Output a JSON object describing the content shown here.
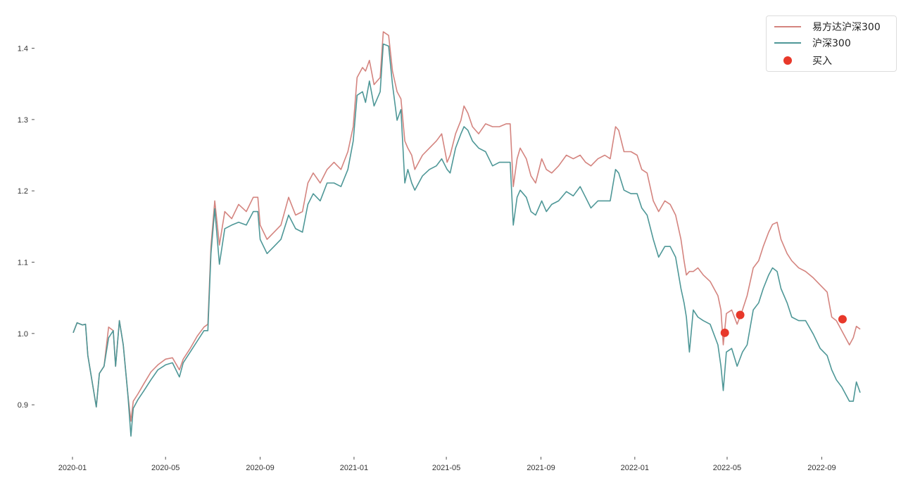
{
  "chart_data": {
    "type": "line",
    "title": "",
    "xlabel": "",
    "ylabel": "",
    "xlim": [
      "2019-12-11",
      "2022-11-11"
    ],
    "ylim": [
      0.836,
      1.44
    ],
    "grid": false,
    "legend_placement": "top-right",
    "x_ticks": [
      "2020-01",
      "2020-05",
      "2020-09",
      "2021-01",
      "2021-05",
      "2021-09",
      "2022-01",
      "2022-05",
      "2022-09"
    ],
    "y_ticks": [
      "0.9",
      "1.0",
      "1.1",
      "1.2",
      "1.3",
      "1.4"
    ],
    "x": [
      "2020-01-02",
      "2020-01-07",
      "2020-01-14",
      "2020-01-18",
      "2020-01-21",
      "2020-02-01",
      "2020-02-05",
      "2020-02-11",
      "2020-02-17",
      "2020-02-23",
      "2020-02-26",
      "2020-03-02",
      "2020-03-07",
      "2020-03-13",
      "2020-03-17",
      "2020-03-20",
      "2020-03-26",
      "2020-04-03",
      "2020-04-12",
      "2020-04-21",
      "2020-05-01",
      "2020-05-10",
      "2020-05-19",
      "2020-05-24",
      "2020-06-02",
      "2020-06-11",
      "2020-06-20",
      "2020-06-25",
      "2020-06-29",
      "2020-07-04",
      "2020-07-10",
      "2020-07-17",
      "2020-07-26",
      "2020-08-04",
      "2020-08-14",
      "2020-08-23",
      "2020-08-29",
      "2020-09-01",
      "2020-09-10",
      "2020-09-19",
      "2020-09-28",
      "2020-10-08",
      "2020-10-17",
      "2020-10-26",
      "2020-11-02",
      "2020-11-09",
      "2020-11-18",
      "2020-11-27",
      "2020-12-06",
      "2020-12-15",
      "2020-12-24",
      "2020-12-31",
      "2021-01-05",
      "2021-01-12",
      "2021-01-16",
      "2021-01-21",
      "2021-01-27",
      "2021-02-04",
      "2021-02-08",
      "2021-02-15",
      "2021-02-20",
      "2021-02-26",
      "2021-03-03",
      "2021-03-08",
      "2021-03-12",
      "2021-03-17",
      "2021-03-21",
      "2021-03-31",
      "2021-04-09",
      "2021-04-18",
      "2021-04-25",
      "2021-05-02",
      "2021-05-06",
      "2021-05-13",
      "2021-05-20",
      "2021-05-24",
      "2021-05-29",
      "2021-06-04",
      "2021-06-12",
      "2021-06-21",
      "2021-06-30",
      "2021-07-09",
      "2021-07-18",
      "2021-07-23",
      "2021-07-27",
      "2021-08-01",
      "2021-08-05",
      "2021-08-13",
      "2021-08-19",
      "2021-08-25",
      "2021-09-02",
      "2021-09-08",
      "2021-09-15",
      "2021-09-24",
      "2021-10-04",
      "2021-10-13",
      "2021-10-22",
      "2021-10-29",
      "2021-11-05",
      "2021-11-14",
      "2021-11-23",
      "2021-11-30",
      "2021-12-07",
      "2021-12-11",
      "2021-12-18",
      "2021-12-27",
      "2022-01-04",
      "2022-01-10",
      "2022-01-17",
      "2022-01-25",
      "2022-02-01",
      "2022-02-09",
      "2022-02-16",
      "2022-02-23",
      "2022-03-02",
      "2022-03-06",
      "2022-03-09",
      "2022-03-13",
      "2022-03-18",
      "2022-03-24",
      "2022-03-31",
      "2022-04-09",
      "2022-04-19",
      "2022-04-23",
      "2022-04-26",
      "2022-04-30",
      "2022-05-07",
      "2022-05-14",
      "2022-05-21",
      "2022-05-27",
      "2022-06-04",
      "2022-06-11",
      "2022-06-17",
      "2022-06-24",
      "2022-06-29",
      "2022-07-05",
      "2022-07-10",
      "2022-07-18",
      "2022-07-24",
      "2022-08-02",
      "2022-08-11",
      "2022-08-21",
      "2022-08-30",
      "2022-09-08",
      "2022-09-14",
      "2022-09-20",
      "2022-09-27",
      "2022-10-07",
      "2022-10-12",
      "2022-10-16",
      "2022-10-21"
    ],
    "series": [
      {
        "name": "易方达沪深300",
        "color": "#d4847f",
        "values": [
          1.001,
          1.015,
          1.012,
          1.013,
          0.969,
          0.897,
          0.944,
          0.954,
          1.009,
          1.004,
          0.954,
          1.018,
          0.984,
          0.915,
          0.877,
          0.905,
          0.915,
          0.93,
          0.946,
          0.956,
          0.964,
          0.966,
          0.949,
          0.964,
          0.979,
          0.996,
          1.009,
          1.013,
          1.122,
          1.186,
          1.124,
          1.171,
          1.161,
          1.181,
          1.171,
          1.191,
          1.191,
          1.152,
          1.132,
          1.142,
          1.152,
          1.191,
          1.166,
          1.171,
          1.211,
          1.225,
          1.211,
          1.23,
          1.24,
          1.23,
          1.255,
          1.29,
          1.359,
          1.373,
          1.368,
          1.383,
          1.349,
          1.359,
          1.423,
          1.418,
          1.368,
          1.339,
          1.329,
          1.27,
          1.26,
          1.25,
          1.23,
          1.25,
          1.26,
          1.27,
          1.28,
          1.24,
          1.25,
          1.28,
          1.299,
          1.319,
          1.309,
          1.29,
          1.28,
          1.294,
          1.29,
          1.29,
          1.294,
          1.294,
          1.206,
          1.245,
          1.26,
          1.245,
          1.221,
          1.211,
          1.245,
          1.23,
          1.225,
          1.235,
          1.25,
          1.245,
          1.25,
          1.24,
          1.235,
          1.245,
          1.25,
          1.245,
          1.29,
          1.285,
          1.255,
          1.255,
          1.25,
          1.23,
          1.225,
          1.186,
          1.171,
          1.186,
          1.181,
          1.166,
          1.132,
          1.102,
          1.082,
          1.087,
          1.087,
          1.092,
          1.082,
          1.073,
          1.053,
          1.033,
          0.984,
          1.028,
          1.033,
          1.013,
          1.033,
          1.053,
          1.092,
          1.102,
          1.122,
          1.142,
          1.153,
          1.156,
          1.132,
          1.112,
          1.102,
          1.092,
          1.087,
          1.078,
          1.068,
          1.058,
          1.023,
          1.018,
          1.004,
          0.984,
          0.994,
          1.01,
          1.006
        ]
      },
      {
        "name": "沪深300",
        "color": "#4e9797",
        "values": [
          1.001,
          1.015,
          1.012,
          1.013,
          0.969,
          0.897,
          0.944,
          0.954,
          0.994,
          1.004,
          0.954,
          1.018,
          0.984,
          0.915,
          0.856,
          0.895,
          0.907,
          0.92,
          0.935,
          0.949,
          0.956,
          0.959,
          0.939,
          0.959,
          0.974,
          0.989,
          1.004,
          1.004,
          1.112,
          1.175,
          1.097,
          1.147,
          1.152,
          1.156,
          1.152,
          1.171,
          1.171,
          1.132,
          1.112,
          1.122,
          1.132,
          1.166,
          1.147,
          1.142,
          1.181,
          1.196,
          1.186,
          1.211,
          1.211,
          1.206,
          1.23,
          1.27,
          1.334,
          1.339,
          1.324,
          1.354,
          1.319,
          1.339,
          1.406,
          1.403,
          1.349,
          1.299,
          1.314,
          1.211,
          1.23,
          1.211,
          1.201,
          1.221,
          1.23,
          1.235,
          1.245,
          1.23,
          1.225,
          1.26,
          1.28,
          1.29,
          1.285,
          1.27,
          1.26,
          1.255,
          1.235,
          1.24,
          1.24,
          1.24,
          1.152,
          1.191,
          1.201,
          1.191,
          1.171,
          1.166,
          1.186,
          1.171,
          1.181,
          1.186,
          1.199,
          1.193,
          1.206,
          1.191,
          1.176,
          1.186,
          1.186,
          1.186,
          1.23,
          1.225,
          1.201,
          1.196,
          1.196,
          1.176,
          1.166,
          1.132,
          1.107,
          1.122,
          1.122,
          1.107,
          1.063,
          1.043,
          1.023,
          0.974,
          1.033,
          1.023,
          1.018,
          1.013,
          0.984,
          0.954,
          0.92,
          0.974,
          0.979,
          0.954,
          0.974,
          0.984,
          1.033,
          1.043,
          1.063,
          1.082,
          1.092,
          1.087,
          1.063,
          1.043,
          1.023,
          1.018,
          1.018,
          0.999,
          0.979,
          0.969,
          0.949,
          0.935,
          0.925,
          0.905,
          0.905,
          0.932,
          0.917
        ]
      }
    ],
    "buy_points": {
      "name": "买入",
      "color": "#e8382a",
      "x": [
        "2022-04-28",
        "2022-05-18",
        "2022-09-28"
      ],
      "values": [
        1.001,
        1.026,
        1.02
      ]
    }
  }
}
